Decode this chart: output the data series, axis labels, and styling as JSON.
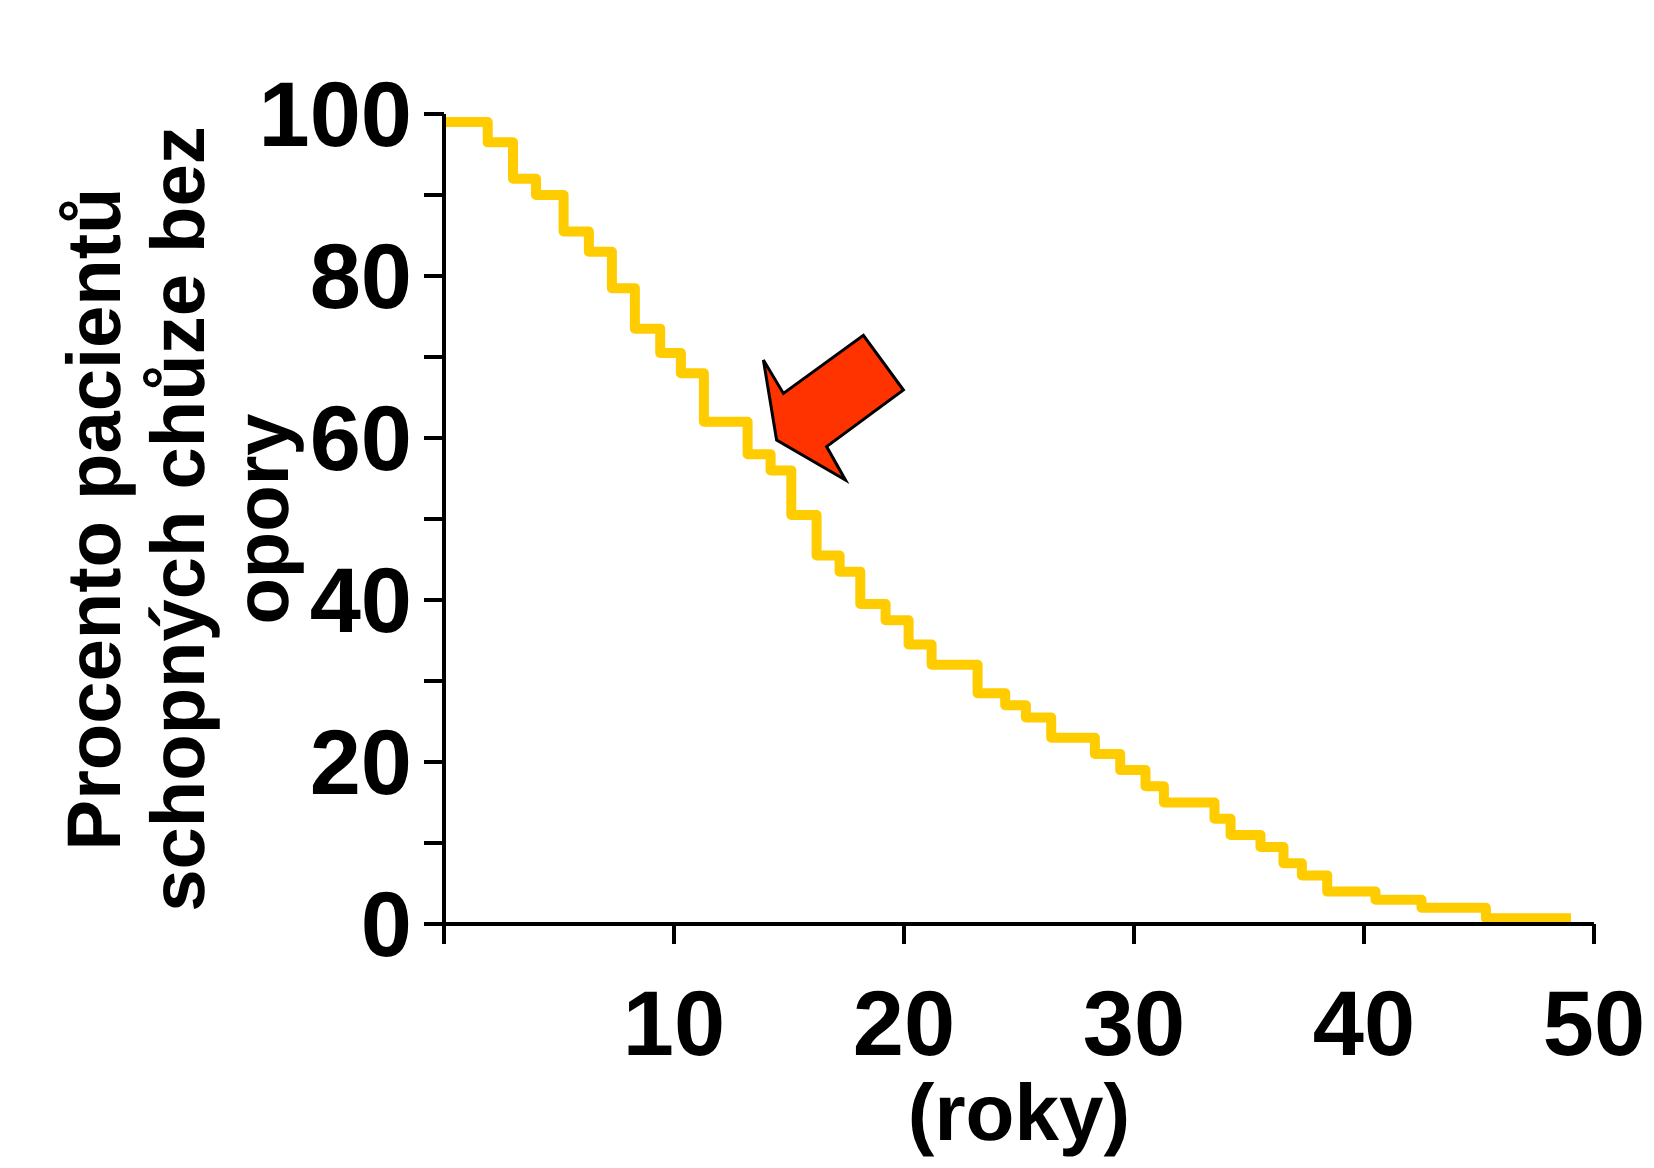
{
  "chart_data": {
    "type": "step",
    "xlabel": "(roky)",
    "ylabel": "Procento pacientů schopných chůze bez opory",
    "color": "#ffcc00",
    "x": [
      0,
      1.9,
      3.0,
      4.0,
      5.2,
      6.3,
      7.3,
      8.3,
      9.4,
      10.3,
      11.3,
      13.2,
      14.2,
      15.1,
      16.2,
      17.2,
      18.1,
      19.2,
      20.2,
      21.2,
      23.2,
      24.4,
      25.3,
      26.4,
      28.3,
      29.4,
      30.5,
      31.3,
      33.5,
      34.2,
      35.5,
      36.5,
      37.3,
      38.4,
      40.5,
      42.5,
      45.3,
      49
    ],
    "values": [
      99,
      96.5,
      92,
      90,
      85.5,
      83,
      78.5,
      73.5,
      70.5,
      68,
      62,
      58,
      56,
      50.5,
      45.5,
      43.5,
      39.5,
      37.5,
      34.5,
      32,
      28.5,
      27,
      25.5,
      23,
      21,
      19,
      17,
      15,
      13,
      11,
      9.5,
      7.5,
      6,
      4,
      3,
      2,
      0.7,
      0.7
    ],
    "xlim": [
      0,
      50
    ],
    "ylim": [
      0,
      100
    ],
    "xticks": [
      {
        "value": 0,
        "label": null
      },
      10,
      20,
      30,
      40,
      50
    ],
    "yticks": [
      0,
      {
        "value": 10,
        "label": null
      },
      20,
      {
        "value": 30,
        "label": null
      },
      40,
      {
        "value": 50,
        "label": null
      },
      60,
      {
        "value": 70,
        "label": null
      },
      80,
      {
        "value": 90,
        "label": null
      },
      100
    ]
  }
}
